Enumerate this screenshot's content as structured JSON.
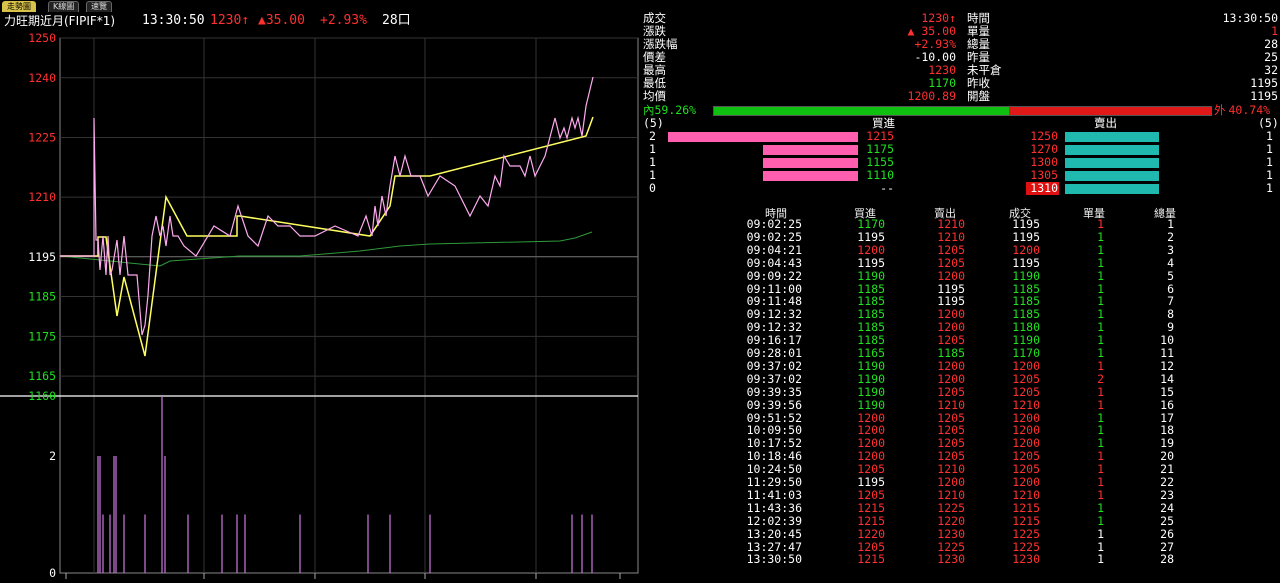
{
  "tabs": [
    "走勢圖",
    "K線圖",
    "速覽"
  ],
  "header": {
    "symbol": "力旺期近月(FIPIF*1)",
    "time": "13:30:50",
    "price": "1230",
    "price_arrow": "↑",
    "change": "▲35.00",
    "change_pct": "+2.93%",
    "volume": "28口"
  },
  "chart_data": [
    {
      "type": "line",
      "y_ticks": [
        1250,
        1240,
        1225,
        1210,
        1195,
        1185,
        1175,
        1165,
        1160
      ],
      "ylim": [
        1160,
        1250
      ],
      "reference_price": 1195,
      "series": []
    },
    {
      "type": "bar",
      "y_ticks": [
        2,
        0
      ],
      "ylim": [
        0,
        2
      ],
      "series": []
    }
  ],
  "quote": {
    "rows": [
      {
        "l1": "成交",
        "v1": "1230↑",
        "c1": "red",
        "l2": "時間",
        "v2": "13:30:50",
        "c2": "white"
      },
      {
        "l1": "漲跌",
        "v1": "▲ 35.00",
        "c1": "red",
        "l2": "單量",
        "v2": "1",
        "c2": "red"
      },
      {
        "l1": "漲跌幅",
        "v1": "+2.93%",
        "c1": "red",
        "l2": "總量",
        "v2": "28",
        "c2": "white"
      },
      {
        "l1": "價差",
        "v1": "-10.00",
        "c1": "white",
        "l2": "昨量",
        "v2": "25",
        "c2": "white"
      },
      {
        "l1": "最高",
        "v1": "1230",
        "c1": "red",
        "l2": "未平倉",
        "v2": "32",
        "c2": "white"
      },
      {
        "l1": "最低",
        "v1": "1170",
        "c1": "green",
        "l2": "昨收",
        "v2": "1195",
        "c2": "white"
      },
      {
        "l1": "均價",
        "v1": "1200.89",
        "c1": "red",
        "l2": "開盤",
        "v2": "1195",
        "c2": "white"
      }
    ],
    "inner_label": "內",
    "inner_pct": "59.26%",
    "outer_label": "外",
    "outer_pct": "40.74%",
    "inner_ratio": 0.5926
  },
  "depth": {
    "left_head": "(5)",
    "right_head": "(5)",
    "buy_title": "買進",
    "sell_title": "賣出",
    "bids": [
      {
        "qty": "2",
        "price": "1215",
        "ratio": 1.0
      },
      {
        "qty": "1",
        "price": "1175",
        "ratio": 0.5
      },
      {
        "qty": "1",
        "price": "1155",
        "ratio": 0.5
      },
      {
        "qty": "1",
        "price": "1110",
        "ratio": 0.5
      },
      {
        "qty": "0",
        "price": "--",
        "ratio": 0
      }
    ],
    "asks": [
      {
        "qty": "1",
        "price": "1250",
        "ratio": 1.0
      },
      {
        "qty": "1",
        "price": "1270",
        "ratio": 1.0
      },
      {
        "qty": "1",
        "price": "1300",
        "ratio": 1.0
      },
      {
        "qty": "1",
        "price": "1305",
        "ratio": 1.0
      },
      {
        "qty": "1",
        "price": "1310",
        "ratio": 1.0
      }
    ]
  },
  "ticks": {
    "headers": [
      "時間",
      "買進",
      "賣出",
      "成交",
      "單量",
      "總量"
    ],
    "rows": [
      [
        "09:02:25",
        "1170",
        "1210",
        "1195",
        "1",
        "1"
      ],
      [
        "09:02:25",
        "1195",
        "1210",
        "1195",
        "1",
        "2"
      ],
      [
        "09:04:21",
        "1200",
        "1205",
        "1200",
        "1",
        "3"
      ],
      [
        "09:04:43",
        "1195",
        "1205",
        "1195",
        "1",
        "4"
      ],
      [
        "09:09:22",
        "1190",
        "1200",
        "1190",
        "1",
        "5"
      ],
      [
        "09:11:00",
        "1185",
        "1195",
        "1185",
        "1",
        "6"
      ],
      [
        "09:11:48",
        "1185",
        "1195",
        "1185",
        "1",
        "7"
      ],
      [
        "09:12:32",
        "1185",
        "1200",
        "1185",
        "1",
        "8"
      ],
      [
        "09:12:32",
        "1185",
        "1200",
        "1180",
        "1",
        "9"
      ],
      [
        "09:16:17",
        "1185",
        "1205",
        "1190",
        "1",
        "10"
      ],
      [
        "09:28:01",
        "1165",
        "1185",
        "1170",
        "1",
        "11"
      ],
      [
        "09:37:02",
        "1190",
        "1200",
        "1200",
        "1",
        "12"
      ],
      [
        "09:37:02",
        "1190",
        "1200",
        "1205",
        "2",
        "14"
      ],
      [
        "09:39:35",
        "1190",
        "1205",
        "1205",
        "1",
        "15"
      ],
      [
        "09:39:56",
        "1190",
        "1210",
        "1210",
        "1",
        "16"
      ],
      [
        "09:51:52",
        "1200",
        "1205",
        "1200",
        "1",
        "17"
      ],
      [
        "10:09:50",
        "1200",
        "1205",
        "1200",
        "1",
        "18"
      ],
      [
        "10:17:52",
        "1200",
        "1205",
        "1200",
        "1",
        "19"
      ],
      [
        "10:18:46",
        "1200",
        "1205",
        "1205",
        "1",
        "20"
      ],
      [
        "10:24:50",
        "1205",
        "1210",
        "1205",
        "1",
        "21"
      ],
      [
        "11:29:50",
        "1195",
        "1200",
        "1200",
        "1",
        "22"
      ],
      [
        "11:41:03",
        "1205",
        "1210",
        "1210",
        "1",
        "23"
      ],
      [
        "11:43:36",
        "1215",
        "1225",
        "1215",
        "1",
        "24"
      ],
      [
        "12:02:39",
        "1215",
        "1220",
        "1215",
        "1",
        "25"
      ],
      [
        "13:20:45",
        "1220",
        "1230",
        "1225",
        "1",
        "26"
      ],
      [
        "13:27:47",
        "1205",
        "1225",
        "1225",
        "1",
        "27"
      ],
      [
        "13:30:50",
        "1215",
        "1230",
        "1230",
        "1",
        "28"
      ]
    ],
    "colors": [
      [
        "w",
        "g",
        "r",
        "w",
        "r",
        "w"
      ],
      [
        "w",
        "w",
        "r",
        "w",
        "g",
        "w"
      ],
      [
        "w",
        "r",
        "r",
        "r",
        "g",
        "w"
      ],
      [
        "w",
        "w",
        "r",
        "w",
        "g",
        "w"
      ],
      [
        "w",
        "g",
        "r",
        "g",
        "g",
        "w"
      ],
      [
        "w",
        "g",
        "w",
        "g",
        "g",
        "w"
      ],
      [
        "w",
        "g",
        "w",
        "g",
        "g",
        "w"
      ],
      [
        "w",
        "g",
        "r",
        "g",
        "g",
        "w"
      ],
      [
        "w",
        "g",
        "r",
        "g",
        "g",
        "w"
      ],
      [
        "w",
        "g",
        "r",
        "g",
        "g",
        "w"
      ],
      [
        "w",
        "g",
        "g",
        "g",
        "g",
        "w"
      ],
      [
        "w",
        "g",
        "r",
        "r",
        "r",
        "w"
      ],
      [
        "w",
        "g",
        "r",
        "r",
        "r",
        "w"
      ],
      [
        "w",
        "g",
        "r",
        "r",
        "r",
        "w"
      ],
      [
        "w",
        "g",
        "r",
        "r",
        "r",
        "w"
      ],
      [
        "w",
        "r",
        "r",
        "r",
        "g",
        "w"
      ],
      [
        "w",
        "r",
        "r",
        "r",
        "g",
        "w"
      ],
      [
        "w",
        "r",
        "r",
        "r",
        "g",
        "w"
      ],
      [
        "w",
        "r",
        "r",
        "r",
        "r",
        "w"
      ],
      [
        "w",
        "r",
        "r",
        "r",
        "r",
        "w"
      ],
      [
        "w",
        "w",
        "r",
        "r",
        "r",
        "w"
      ],
      [
        "w",
        "r",
        "r",
        "r",
        "r",
        "w"
      ],
      [
        "w",
        "r",
        "r",
        "r",
        "g",
        "w"
      ],
      [
        "w",
        "r",
        "r",
        "r",
        "g",
        "w"
      ],
      [
        "w",
        "r",
        "r",
        "r",
        "w",
        "w"
      ],
      [
        "w",
        "r",
        "r",
        "r",
        "w",
        "w"
      ],
      [
        "w",
        "r",
        "r",
        "r",
        "w",
        "w"
      ]
    ]
  },
  "colors": {
    "up": "#ff3030",
    "down": "#20e020",
    "flat": "#ffffff",
    "bid_bar": "#ff5fae",
    "ask_bar": "#1fb9b0",
    "ask_highlight": "#e01010"
  }
}
